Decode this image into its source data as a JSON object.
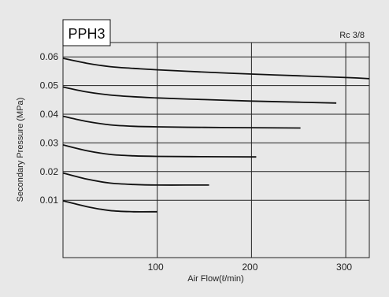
{
  "chart_data": {
    "type": "line",
    "model_label": "PPH3",
    "port_label": "Rc 3/8",
    "xlabel": "Air Flow(ℓ/min)",
    "ylabel": "Secondary Pressure (MPa)",
    "xlim": [
      0,
      325
    ],
    "ylim": [
      -0.01,
      0.065
    ],
    "xticks": [
      100,
      200,
      300
    ],
    "xtick_labels": [
      "100",
      "200",
      "300"
    ],
    "yticks": [
      0.01,
      0.02,
      0.03,
      0.04,
      0.05,
      0.06
    ],
    "ytick_labels": [
      "0.01",
      "0.02",
      "0.03",
      "0.04",
      "0.05",
      "0.06"
    ],
    "grid": true,
    "series": [
      {
        "x": [
          0,
          25,
          50,
          75,
          100
        ],
        "y": [
          0.0098,
          0.0078,
          0.0064,
          0.006,
          0.006
        ]
      },
      {
        "x": [
          0,
          25,
          50,
          75,
          100,
          130,
          155
        ],
        "y": [
          0.0195,
          0.0174,
          0.016,
          0.0155,
          0.0153,
          0.0153,
          0.0153
        ]
      },
      {
        "x": [
          0,
          25,
          50,
          75,
          100,
          150,
          205
        ],
        "y": [
          0.0293,
          0.0273,
          0.026,
          0.0255,
          0.0253,
          0.0252,
          0.0251
        ]
      },
      {
        "x": [
          0,
          25,
          50,
          75,
          100,
          150,
          200,
          252
        ],
        "y": [
          0.0393,
          0.0375,
          0.0363,
          0.0358,
          0.0356,
          0.0354,
          0.0353,
          0.0352
        ]
      },
      {
        "x": [
          0,
          25,
          50,
          75,
          100,
          150,
          200,
          250,
          290
        ],
        "y": [
          0.0495,
          0.0478,
          0.0467,
          0.0461,
          0.0457,
          0.0451,
          0.0446,
          0.0442,
          0.0439
        ]
      },
      {
        "x": [
          0,
          25,
          50,
          75,
          100,
          150,
          200,
          250,
          300,
          325
        ],
        "y": [
          0.0595,
          0.0578,
          0.0566,
          0.056,
          0.0555,
          0.0547,
          0.054,
          0.0534,
          0.0528,
          0.0524
        ]
      }
    ]
  }
}
